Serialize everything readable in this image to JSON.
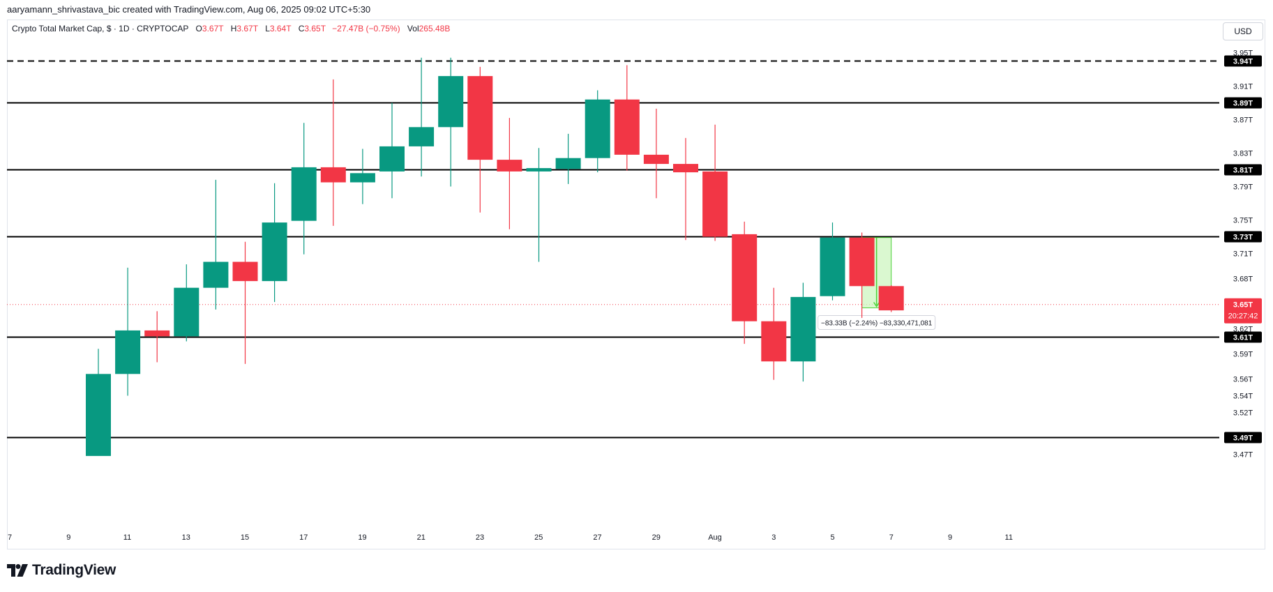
{
  "credit": "aaryamann_shrivastava_bic created with TradingView.com, Aug 06, 2025 09:02 UTC+5:30",
  "legend": {
    "symbol": "Crypto Total Market Cap, $ · 1D · CRYPTOCAP",
    "open_label": "O",
    "open": "3.67T",
    "high_label": "H",
    "high": "3.67T",
    "low_label": "L",
    "low": "3.64T",
    "close_label": "C",
    "close": "3.65T",
    "change": "−27.47B (−0.75%)",
    "vol_label": "Vol",
    "vol": "265.48B"
  },
  "currency_button": "USD",
  "logo": {
    "text": "TradingView",
    "icon": "tradingview-logo-icon"
  },
  "colors": {
    "up": "#089981",
    "down": "#f23645",
    "measure_fill": "#cdf5c0",
    "measure_line": "#4cd137",
    "price_line": "#f23645"
  },
  "chart_data": {
    "type": "candlestick",
    "x_tick_labels": [
      "7",
      "9",
      "11",
      "13",
      "15",
      "17",
      "19",
      "21",
      "23",
      "25",
      "27",
      "29",
      "Aug",
      "3",
      "5",
      "7",
      "9",
      "11"
    ],
    "y_tick_labels": [
      "3.95T",
      "3.91T",
      "3.87T",
      "3.83T",
      "3.79T",
      "3.75T",
      "3.71T",
      "3.68T",
      "3.62T",
      "3.59T",
      "3.56T",
      "3.54T",
      "3.52T",
      "3.47T"
    ],
    "ylim": [
      3.4655,
      3.9632
    ],
    "y_unit": "T",
    "candles": [
      {
        "date": "Jul 10",
        "open": 3.468,
        "high": 3.596,
        "low": 3.46,
        "close": 3.566
      },
      {
        "date": "Jul 11",
        "open": 3.566,
        "high": 3.693,
        "low": 3.54,
        "close": 3.618
      },
      {
        "date": "Jul 12",
        "open": 3.618,
        "high": 3.641,
        "low": 3.58,
        "close": 3.611
      },
      {
        "date": "Jul 13",
        "open": 3.611,
        "high": 3.697,
        "low": 3.605,
        "close": 3.669
      },
      {
        "date": "Jul 14",
        "open": 3.669,
        "high": 3.798,
        "low": 3.643,
        "close": 3.7
      },
      {
        "date": "Jul 15",
        "open": 3.7,
        "high": 3.724,
        "low": 3.578,
        "close": 3.677
      },
      {
        "date": "Jul 16",
        "open": 3.677,
        "high": 3.794,
        "low": 3.652,
        "close": 3.747
      },
      {
        "date": "Jul 17",
        "open": 3.749,
        "high": 3.866,
        "low": 3.709,
        "close": 3.813
      },
      {
        "date": "Jul 18",
        "open": 3.813,
        "high": 3.918,
        "low": 3.743,
        "close": 3.795
      },
      {
        "date": "Jul 19",
        "open": 3.795,
        "high": 3.835,
        "low": 3.769,
        "close": 3.806
      },
      {
        "date": "Jul 20",
        "open": 3.808,
        "high": 3.89,
        "low": 3.776,
        "close": 3.838
      },
      {
        "date": "Jul 21",
        "open": 3.838,
        "high": 3.944,
        "low": 3.802,
        "close": 3.861
      },
      {
        "date": "Jul 22",
        "open": 3.861,
        "high": 3.944,
        "low": 3.79,
        "close": 3.922
      },
      {
        "date": "Jul 23",
        "open": 3.922,
        "high": 3.933,
        "low": 3.759,
        "close": 3.822
      },
      {
        "date": "Jul 24",
        "open": 3.822,
        "high": 3.872,
        "low": 3.739,
        "close": 3.808
      },
      {
        "date": "Jul 25",
        "open": 3.808,
        "high": 3.836,
        "low": 3.7,
        "close": 3.812
      },
      {
        "date": "Jul 26",
        "open": 3.811,
        "high": 3.853,
        "low": 3.793,
        "close": 3.824
      },
      {
        "date": "Jul 27",
        "open": 3.824,
        "high": 3.905,
        "low": 3.807,
        "close": 3.894
      },
      {
        "date": "Jul 28",
        "open": 3.894,
        "high": 3.935,
        "low": 3.809,
        "close": 3.828
      },
      {
        "date": "Jul 29",
        "open": 3.828,
        "high": 3.883,
        "low": 3.776,
        "close": 3.817
      },
      {
        "date": "Jul 30",
        "open": 3.817,
        "high": 3.848,
        "low": 3.726,
        "close": 3.807
      },
      {
        "date": "Jul 31",
        "open": 3.808,
        "high": 3.864,
        "low": 3.725,
        "close": 3.73
      },
      {
        "date": "Aug 1",
        "open": 3.733,
        "high": 3.748,
        "low": 3.602,
        "close": 3.629
      },
      {
        "date": "Aug 2",
        "open": 3.629,
        "high": 3.669,
        "low": 3.559,
        "close": 3.581
      },
      {
        "date": "Aug 3",
        "open": 3.581,
        "high": 3.675,
        "low": 3.557,
        "close": 3.658
      },
      {
        "date": "Aug 4",
        "open": 3.659,
        "high": 3.747,
        "low": 3.654,
        "close": 3.729
      },
      {
        "date": "Aug 5",
        "open": 3.729,
        "high": 3.735,
        "low": 3.633,
        "close": 3.671
      },
      {
        "date": "Aug 6",
        "open": 3.671,
        "high": 3.672,
        "low": 3.64,
        "close": 3.642
      }
    ],
    "horizontal_lines": [
      {
        "value": 3.94,
        "label": "3.94T",
        "style": "dashed"
      },
      {
        "value": 3.89,
        "label": "3.89T",
        "style": "solid"
      },
      {
        "value": 3.81,
        "label": "3.81T",
        "style": "solid"
      },
      {
        "value": 3.73,
        "label": "3.73T",
        "style": "solid"
      },
      {
        "value": 3.61,
        "label": "3.61T",
        "style": "solid"
      },
      {
        "value": 3.49,
        "label": "3.49T",
        "style": "solid"
      }
    ],
    "current_price": {
      "value": 3.649,
      "label": "3.65T",
      "countdown": "20:27:42"
    },
    "measure": {
      "from": {
        "date": "Aug 5",
        "value": 3.729
      },
      "to": {
        "date": "Aug 6",
        "value": 3.645
      },
      "label": "−83.33B (−2.24%) −83,330,471,081"
    },
    "grid": false
  }
}
